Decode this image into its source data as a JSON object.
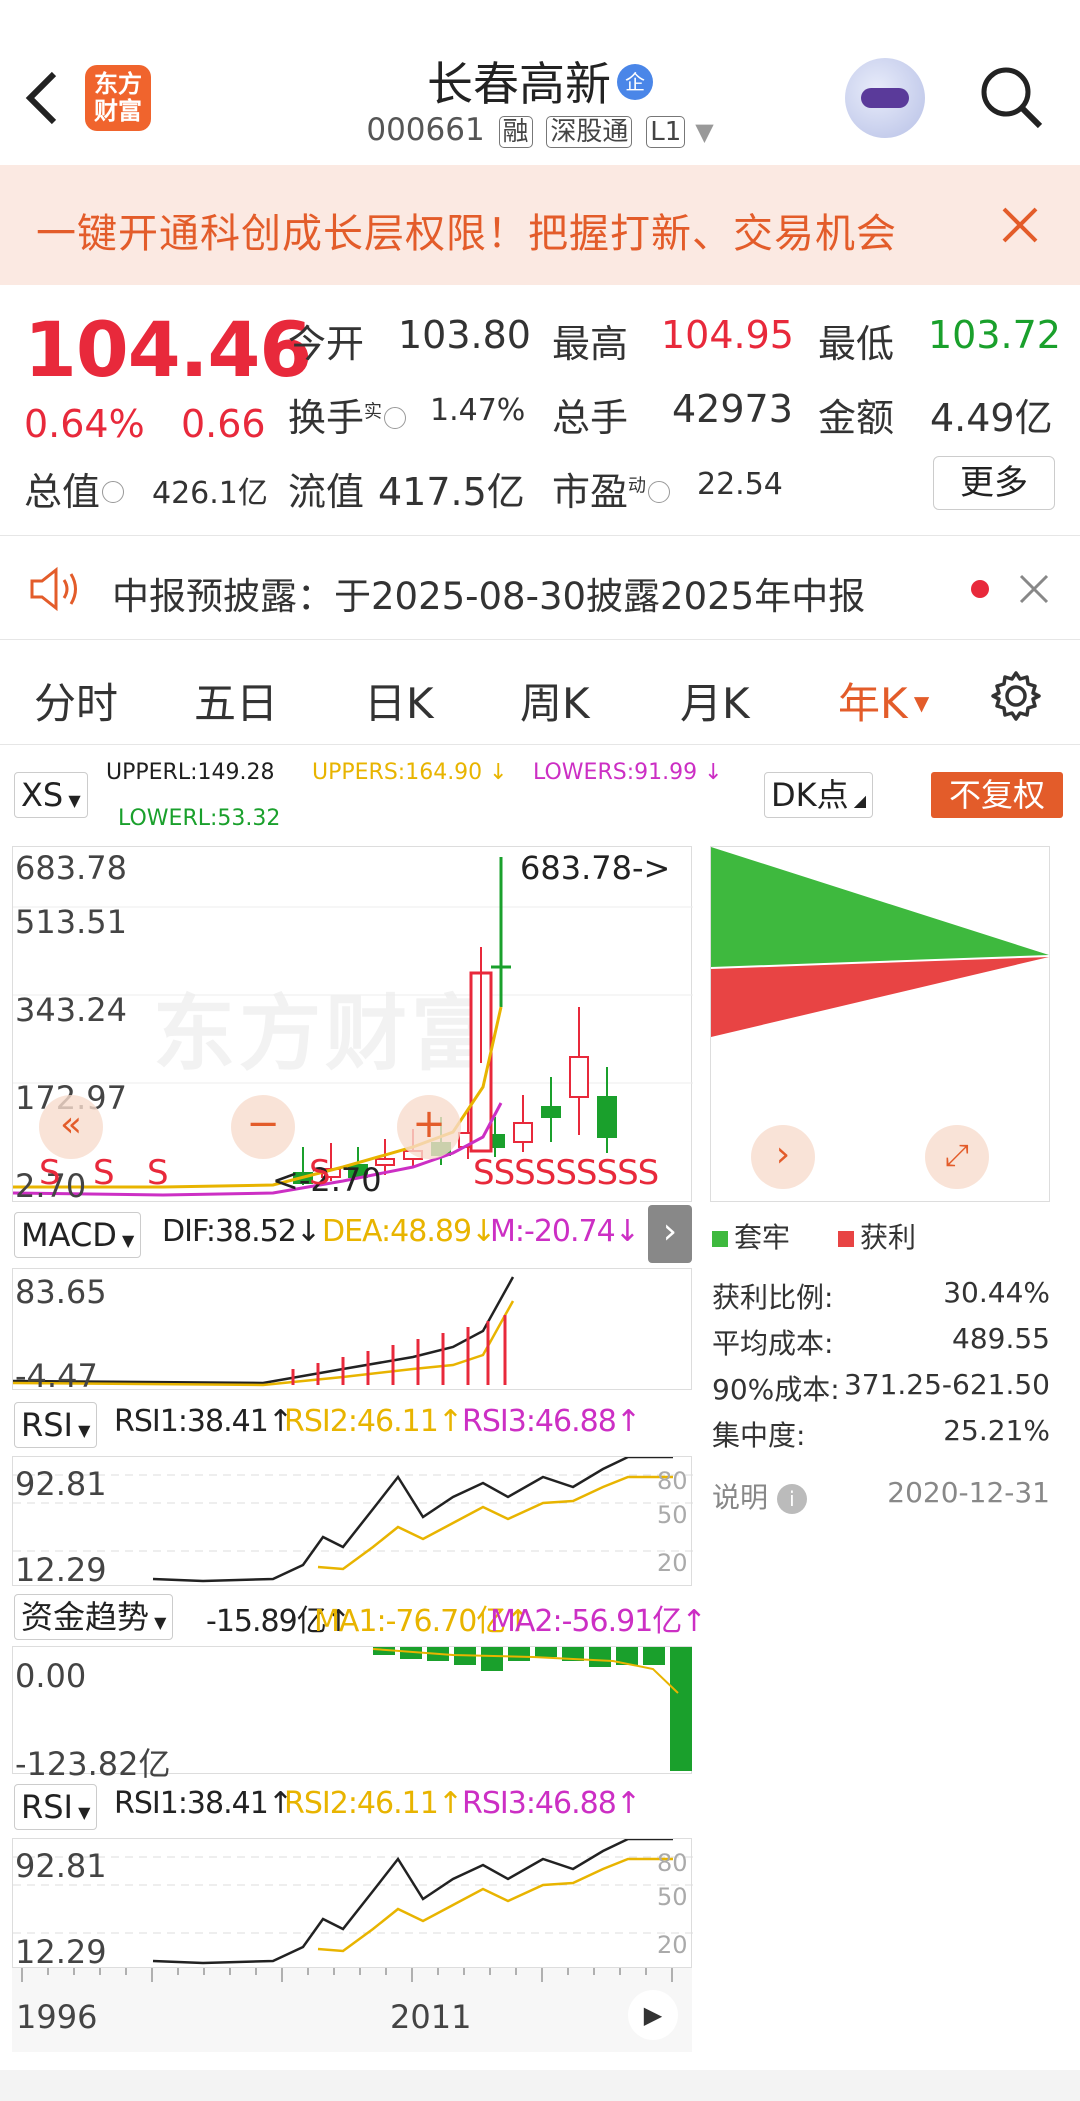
{
  "header": {
    "title": "长春高新",
    "badge": "企",
    "code": "000661",
    "tags": [
      "融",
      "深股通",
      "L1"
    ]
  },
  "banner": {
    "text": "一键开通科创成长层权限！把握打新、交易机会"
  },
  "quote": {
    "price": "104.46",
    "change_pct": "0.64%",
    "change": "0.66",
    "open_label": "今开",
    "open": "103.80",
    "high_label": "最高",
    "high": "104.95",
    "low_label": "最低",
    "low": "103.72",
    "turnover_label": "换手",
    "turnover_sup": "实",
    "turnover": "1.47%",
    "volume_label": "总手",
    "volume": "42973",
    "amount_label": "金额",
    "amount": "4.49亿",
    "mktcap_label": "总值",
    "mktcap": "426.1亿",
    "float_label": "流值",
    "float": "417.5亿",
    "pe_label": "市盈",
    "pe_sup": "动",
    "pe": "22.54",
    "more": "更多"
  },
  "notice": {
    "text": "中报预披露：于2025-08-30披露2025年中报"
  },
  "tabs": [
    "分时",
    "五日",
    "日K",
    "周K",
    "月K",
    "年K"
  ],
  "indicator_bar": {
    "xs": "XS",
    "upperl": "UPPERL:149.28",
    "uppers": "UPPERS:164.90",
    "lowers": "LOWERS:91.99",
    "lowerl": "LOWERL:53.32",
    "dk": "DK点",
    "fq": "不复权"
  },
  "main_chart": {
    "ymax": "683.78",
    "y2": "513.51",
    "y3": "343.24",
    "y4": "172.97",
    "ymin": "2.70",
    "max_marker": "683.78->",
    "min_marker": "<-2.70",
    "watermark": "东方财富",
    "s_labels": [
      "S",
      "S",
      "S",
      "S",
      "SSSSSSSSS"
    ]
  },
  "macd": {
    "name": "MACD",
    "dif": "DIF:38.52",
    "dea": "DEA:48.89",
    "m": "M:-20.74",
    "ymax": "83.65",
    "ymin": "-4.47"
  },
  "rsi1": {
    "name": "RSI",
    "r1": "RSI1:38.41",
    "r2": "RSI2:46.11",
    "r3": "RSI3:46.88",
    "ymax": "92.81",
    "ymin": "12.29",
    "lv80": "80",
    "lv50": "50",
    "lv20": "20"
  },
  "fund": {
    "name": "资金趋势",
    "v": "-15.89亿",
    "ma1": "MA1:-76.70亿",
    "ma2": "MA2:-56.91亿",
    "ymax": "0.00",
    "ymin": "-123.82亿"
  },
  "rsi2": {
    "name": "RSI",
    "r1": "RSI1:38.41",
    "r2": "RSI2:46.11",
    "r3": "RSI3:46.88",
    "ymax": "92.81",
    "ymin": "12.29",
    "lv80": "80",
    "lv50": "50",
    "lv20": "20"
  },
  "xaxis": {
    "start": "1996",
    "mid": "2011"
  },
  "chip": {
    "legend_trap": "套牢",
    "legend_profit": "获利",
    "rows": [
      {
        "k": "获利比例:",
        "v": "30.44%"
      },
      {
        "k": "平均成本:",
        "v": "489.55"
      },
      {
        "k": "90%成本:",
        "v": "371.25-621.50"
      },
      {
        "k": "集中度:",
        "v": "25.21%"
      }
    ],
    "note_label": "说明",
    "date": "2020-12-31"
  },
  "colors": {
    "up": "#e8293b",
    "down": "#1aa02c",
    "accent": "#e35c2a",
    "yellow": "#e8b400",
    "magenta": "#cc2fc4"
  }
}
